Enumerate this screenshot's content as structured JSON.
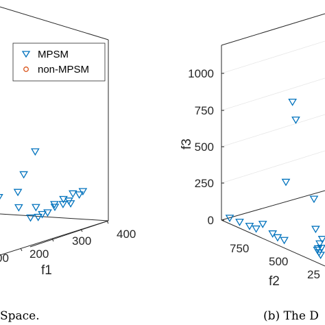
{
  "chart_data": [
    {
      "type": "scatter",
      "panel": "left",
      "caption": "Space.",
      "xlabel": "f1",
      "x_ticks": [
        "00",
        "200",
        "300",
        "400"
      ],
      "legend": {
        "placement": "top-right",
        "entries": [
          {
            "label": "MPSM",
            "marker": "triangle-down",
            "color": "#0072BD"
          },
          {
            "label": "non-MPSM",
            "marker": "circle",
            "color": "#D95319"
          }
        ]
      },
      "series": [
        {
          "name": "MPSM",
          "color": "#0072BD",
          "points": [
            {
              "f1": 188,
              "z": 0.62
            },
            {
              "f1": 160,
              "z": 0.44
            },
            {
              "f1": 95,
              "z": 0.3
            },
            {
              "f1": 140,
              "z": 0.3
            },
            {
              "f1": 40,
              "z": 0.14
            },
            {
              "f1": 150,
              "z": 0.15
            },
            {
              "f1": 190,
              "z": 0.11
            },
            {
              "f1": 245,
              "z": 0.08
            },
            {
              "f1": 250,
              "z": 0.05
            },
            {
              "f1": 265,
              "z": 0.06
            },
            {
              "f1": 285,
              "z": 0.07
            },
            {
              "f1": 300,
              "z": 0.12
            },
            {
              "f1": 310,
              "z": 0.1
            },
            {
              "f1": 290,
              "z": 0.04
            },
            {
              "f1": 230,
              "z": 0.02
            },
            {
              "f1": 175,
              "z": 0.03
            },
            {
              "f1": 200,
              "z": 0.01
            },
            {
              "f1": 215,
              "z": 0.02
            },
            {
              "f1": 320,
              "z": 0.12
            },
            {
              "f1": 270,
              "z": 0.1
            }
          ]
        },
        {
          "name": "non-MPSM",
          "color": "#D95319",
          "points": []
        }
      ]
    },
    {
      "type": "scatter",
      "panel": "right",
      "caption": "(b) The D",
      "xlabel": "f2",
      "zlabel": "f3",
      "x_ticks": [
        "750",
        "500",
        "25"
      ],
      "z_ticks": [
        "0",
        "250",
        "500",
        "750",
        "1000"
      ],
      "zlim": [
        0,
        1100
      ],
      "series": [
        {
          "name": "MPSM",
          "color": "#0072BD",
          "points": [
            {
              "f2": 760,
              "f3": 0
            },
            {
              "f2": 700,
              "f3": 0
            },
            {
              "f2": 560,
              "f3": 40
            },
            {
              "f2": 640,
              "f3": 0
            },
            {
              "f2": 600,
              "f3": 0
            },
            {
              "f2": 500,
              "f3": 10
            },
            {
              "f2": 470,
              "f3": 0
            },
            {
              "f2": 430,
              "f3": 0
            },
            {
              "f2": 420,
              "f3": 320
            },
            {
              "f2": 380,
              "f3": 770
            },
            {
              "f2": 360,
              "f3": 680
            },
            {
              "f2": 250,
              "f3": 290
            },
            {
              "f2": 240,
              "f3": 130
            },
            {
              "f2": 230,
              "f3": 20
            },
            {
              "f2": 220,
              "f3": 10
            },
            {
              "f2": 210,
              "f3": 0
            },
            {
              "f2": 205,
              "f3": 40
            },
            {
              "f2": 200,
              "f3": 90
            },
            {
              "f2": 215,
              "f3": 60
            },
            {
              "f2": 225,
              "f3": 30
            }
          ]
        }
      ]
    }
  ]
}
